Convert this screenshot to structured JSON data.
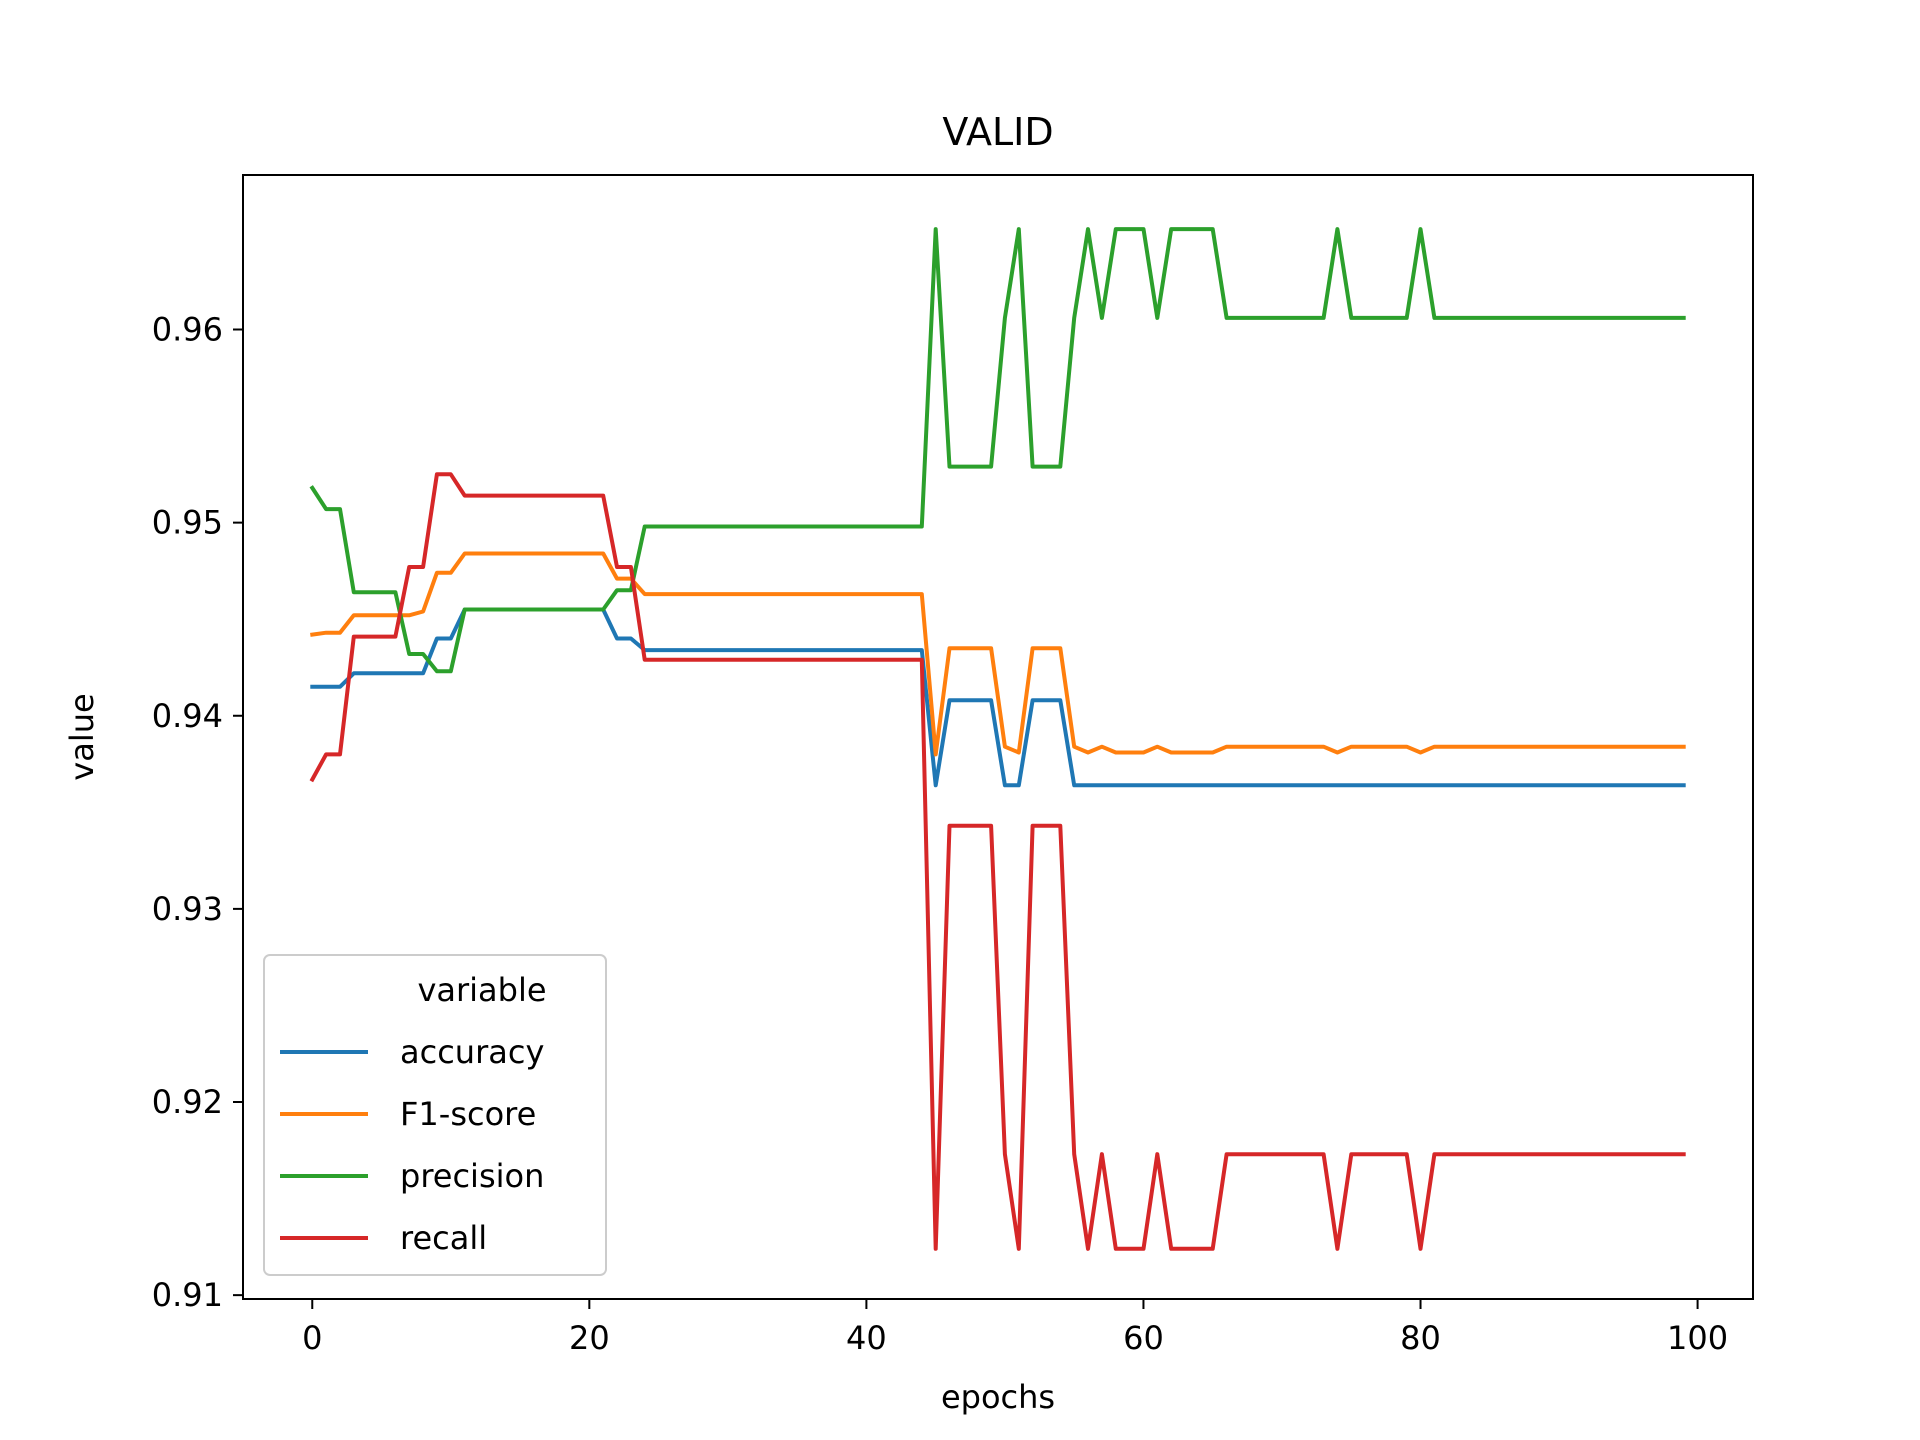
{
  "chart_data": {
    "type": "line",
    "title": "VALID",
    "xlabel": "epochs",
    "ylabel": "value",
    "xlim": [
      -5,
      104
    ],
    "ylim": [
      0.9098,
      0.968
    ],
    "xticks": [
      0,
      20,
      40,
      60,
      80,
      100
    ],
    "yticks": [
      0.91,
      0.92,
      0.93,
      0.94,
      0.95,
      0.96
    ],
    "ytick_labels": [
      "0.91",
      "0.92",
      "0.93",
      "0.94",
      "0.95",
      "0.96"
    ],
    "xtick_labels": [
      "0",
      "20",
      "40",
      "60",
      "80",
      "100"
    ],
    "grid": false,
    "legend": {
      "title": "variable",
      "placement": "lower-left"
    },
    "series": [
      {
        "name": "accuracy",
        "color": "#1f77b4",
        "points": [
          [
            0,
            0.9415
          ],
          [
            2,
            0.9415
          ],
          [
            3,
            0.9422
          ],
          [
            8,
            0.9422
          ],
          [
            9,
            0.944
          ],
          [
            10,
            0.944
          ],
          [
            11,
            0.9455
          ],
          [
            21,
            0.9455
          ],
          [
            22,
            0.944
          ],
          [
            23,
            0.944
          ],
          [
            24,
            0.9434
          ],
          [
            44,
            0.9434
          ],
          [
            45,
            0.9364
          ],
          [
            46,
            0.9408
          ],
          [
            49,
            0.9408
          ],
          [
            50,
            0.9364
          ],
          [
            51,
            0.9364
          ],
          [
            52,
            0.9408
          ],
          [
            54,
            0.9408
          ],
          [
            55,
            0.9364
          ],
          [
            99,
            0.9364
          ]
        ]
      },
      {
        "name": "F1-score",
        "color": "#ff7f0e",
        "points": [
          [
            0,
            0.9442
          ],
          [
            1,
            0.9443
          ],
          [
            2,
            0.9443
          ],
          [
            3,
            0.9452
          ],
          [
            7,
            0.9452
          ],
          [
            8,
            0.9454
          ],
          [
            9,
            0.9474
          ],
          [
            10,
            0.9474
          ],
          [
            11,
            0.9484
          ],
          [
            21,
            0.9484
          ],
          [
            22,
            0.9471
          ],
          [
            23,
            0.9471
          ],
          [
            24,
            0.9463
          ],
          [
            44,
            0.9463
          ],
          [
            45,
            0.938
          ],
          [
            46,
            0.9435
          ],
          [
            49,
            0.9435
          ],
          [
            50,
            0.9384
          ],
          [
            51,
            0.9381
          ],
          [
            52,
            0.9435
          ],
          [
            54,
            0.9435
          ],
          [
            55,
            0.9384
          ],
          [
            56,
            0.9381
          ],
          [
            57,
            0.9384
          ],
          [
            58,
            0.9381
          ],
          [
            60,
            0.9381
          ],
          [
            61,
            0.9384
          ],
          [
            62,
            0.9381
          ],
          [
            65,
            0.9381
          ],
          [
            66,
            0.9384
          ],
          [
            73,
            0.9384
          ],
          [
            74,
            0.9381
          ],
          [
            75,
            0.9384
          ],
          [
            79,
            0.9384
          ],
          [
            80,
            0.9381
          ],
          [
            81,
            0.9384
          ],
          [
            99,
            0.9384
          ]
        ]
      },
      {
        "name": "precision",
        "color": "#2ca02c",
        "points": [
          [
            0,
            0.9518
          ],
          [
            1,
            0.9507
          ],
          [
            2,
            0.9507
          ],
          [
            3,
            0.9464
          ],
          [
            6,
            0.9464
          ],
          [
            7,
            0.9432
          ],
          [
            8,
            0.9432
          ],
          [
            9,
            0.9423
          ],
          [
            10,
            0.9423
          ],
          [
            11,
            0.9455
          ],
          [
            21,
            0.9455
          ],
          [
            22,
            0.9465
          ],
          [
            23,
            0.9465
          ],
          [
            24,
            0.9498
          ],
          [
            44,
            0.9498
          ],
          [
            45,
            0.9652
          ],
          [
            46,
            0.9529
          ],
          [
            49,
            0.9529
          ],
          [
            50,
            0.9606
          ],
          [
            51,
            0.9652
          ],
          [
            52,
            0.9529
          ],
          [
            54,
            0.9529
          ],
          [
            55,
            0.9606
          ],
          [
            56,
            0.9652
          ],
          [
            57,
            0.9606
          ],
          [
            58,
            0.9652
          ],
          [
            60,
            0.9652
          ],
          [
            61,
            0.9606
          ],
          [
            62,
            0.9652
          ],
          [
            65,
            0.9652
          ],
          [
            66,
            0.9606
          ],
          [
            73,
            0.9606
          ],
          [
            74,
            0.9652
          ],
          [
            75,
            0.9606
          ],
          [
            79,
            0.9606
          ],
          [
            80,
            0.9652
          ],
          [
            81,
            0.9606
          ],
          [
            99,
            0.9606
          ]
        ]
      },
      {
        "name": "recall",
        "color": "#d62728",
        "points": [
          [
            0,
            0.9367
          ],
          [
            1,
            0.938
          ],
          [
            2,
            0.938
          ],
          [
            3,
            0.9441
          ],
          [
            6,
            0.9441
          ],
          [
            7,
            0.9477
          ],
          [
            8,
            0.9477
          ],
          [
            9,
            0.9525
          ],
          [
            10,
            0.9525
          ],
          [
            11,
            0.9514
          ],
          [
            21,
            0.9514
          ],
          [
            22,
            0.9477
          ],
          [
            23,
            0.9477
          ],
          [
            24,
            0.9429
          ],
          [
            44,
            0.9429
          ],
          [
            45,
            0.9124
          ],
          [
            46,
            0.9343
          ],
          [
            49,
            0.9343
          ],
          [
            50,
            0.9173
          ],
          [
            51,
            0.9124
          ],
          [
            52,
            0.9343
          ],
          [
            54,
            0.9343
          ],
          [
            55,
            0.9173
          ],
          [
            56,
            0.9124
          ],
          [
            57,
            0.9173
          ],
          [
            58,
            0.9124
          ],
          [
            60,
            0.9124
          ],
          [
            61,
            0.9173
          ],
          [
            62,
            0.9124
          ],
          [
            65,
            0.9124
          ],
          [
            66,
            0.9173
          ],
          [
            73,
            0.9173
          ],
          [
            74,
            0.9124
          ],
          [
            75,
            0.9173
          ],
          [
            79,
            0.9173
          ],
          [
            80,
            0.9124
          ],
          [
            81,
            0.9173
          ],
          [
            99,
            0.9173
          ]
        ]
      }
    ]
  }
}
